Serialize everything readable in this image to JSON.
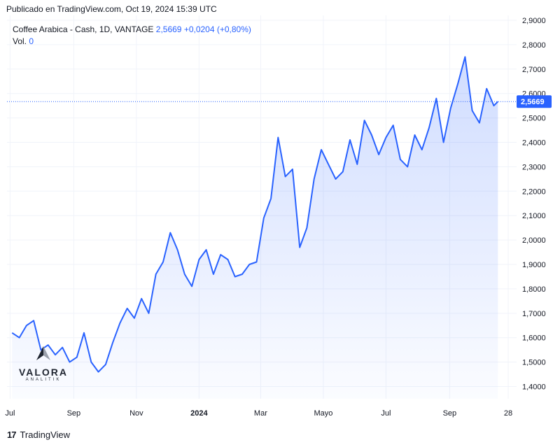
{
  "header": {
    "published_text": "Publicado en TradingView.com, Oct 19, 2024 15:39 UTC"
  },
  "legend": {
    "symbol_text": "Coffee Arabica - Cash, 1D, VANTAGE",
    "last_value": "2,5669",
    "change": "+0,0204 (+0,80%)",
    "vol_label": "Vol.",
    "vol_value": "0"
  },
  "watermark": {
    "brand": "VALORA",
    "sub": "ANALITIK"
  },
  "footer": {
    "brand": "TradingView"
  },
  "colors": {
    "line": "#2962ff",
    "fill": "#2962ff",
    "price_label_bg": "#2962ff",
    "grid": "#f0f3fa",
    "axis_text": "#131722"
  },
  "chart_data": {
    "type": "area",
    "ylim": [
      1.35,
      2.92
    ],
    "yticks": [
      "1,4000",
      "1,5000",
      "1,6000",
      "1,7000",
      "1,8000",
      "1,9000",
      "2,0000",
      "2,1000",
      "2,2000",
      "2,3000",
      "2,4000",
      "2,5000",
      "2,6000",
      "2,7000",
      "2,8000",
      "2,9000"
    ],
    "xticks": [
      "Jul",
      "Sep",
      "Nov",
      "2024",
      "Mar",
      "Mayo",
      "Jul",
      "Sep",
      "28"
    ],
    "last_price_label": "2,5669",
    "last_price": 2.5669,
    "series": [
      {
        "x": [
          "2023-07-03",
          "2023-07-10",
          "2023-07-17",
          "2023-07-24",
          "2023-07-31",
          "2023-08-07",
          "2023-08-14",
          "2023-08-21",
          "2023-08-28",
          "2023-09-04",
          "2023-09-11",
          "2023-09-18",
          "2023-09-25",
          "2023-10-02",
          "2023-10-09",
          "2023-10-16",
          "2023-10-23",
          "2023-10-30",
          "2023-11-06",
          "2023-11-13",
          "2023-11-20",
          "2023-11-27",
          "2023-12-04",
          "2023-12-11",
          "2023-12-18",
          "2023-12-25",
          "2024-01-01",
          "2024-01-08",
          "2024-01-15",
          "2024-01-22",
          "2024-01-29",
          "2024-02-05",
          "2024-02-12",
          "2024-02-19",
          "2024-02-26",
          "2024-03-04",
          "2024-03-11",
          "2024-03-18",
          "2024-03-25",
          "2024-04-01",
          "2024-04-08",
          "2024-04-15",
          "2024-04-22",
          "2024-04-29",
          "2024-05-06",
          "2024-05-13",
          "2024-05-20",
          "2024-05-27",
          "2024-06-03",
          "2024-06-10",
          "2024-06-17",
          "2024-06-24",
          "2024-07-01",
          "2024-07-08",
          "2024-07-15",
          "2024-07-22",
          "2024-07-29",
          "2024-08-05",
          "2024-08-12",
          "2024-08-19",
          "2024-08-26",
          "2024-09-02",
          "2024-09-09",
          "2024-09-16",
          "2024-09-23",
          "2024-09-30",
          "2024-10-07",
          "2024-10-14",
          "2024-10-18"
        ],
        "values": [
          1.62,
          1.6,
          1.65,
          1.67,
          1.55,
          1.57,
          1.53,
          1.56,
          1.5,
          1.52,
          1.62,
          1.5,
          1.46,
          1.49,
          1.58,
          1.66,
          1.72,
          1.68,
          1.76,
          1.7,
          1.86,
          1.91,
          2.03,
          1.96,
          1.86,
          1.81,
          1.92,
          1.96,
          1.86,
          1.94,
          1.92,
          1.85,
          1.86,
          1.9,
          1.91,
          2.09,
          2.17,
          2.42,
          2.26,
          2.29,
          1.97,
          2.05,
          2.25,
          2.37,
          2.31,
          2.25,
          2.28,
          2.41,
          2.31,
          2.49,
          2.43,
          2.35,
          2.42,
          2.47,
          2.33,
          2.3,
          2.43,
          2.37,
          2.46,
          2.58,
          2.4,
          2.54,
          2.64,
          2.75,
          2.53,
          2.48,
          2.62,
          2.55,
          2.5669
        ]
      }
    ]
  }
}
